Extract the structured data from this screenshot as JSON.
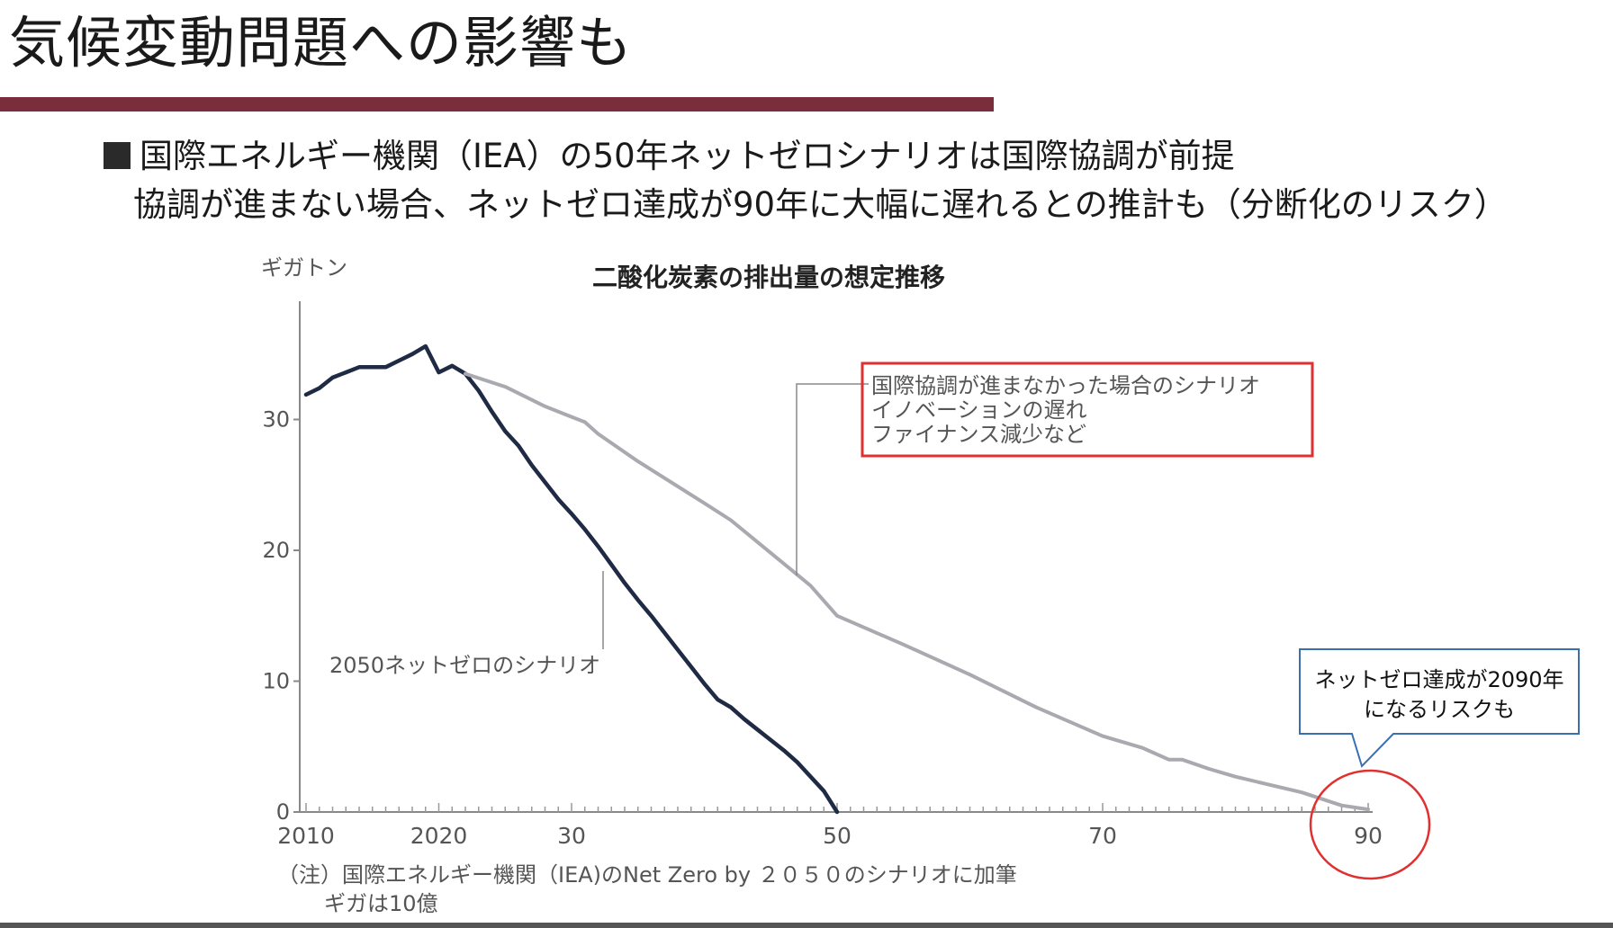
{
  "slide": {
    "title": "気候変動問題への影響も",
    "bullet1": "国際エネルギー機関（IEA）の50年ネットゼロシナリオは国際協調が前提",
    "bullet2": "協調が進まない場合、ネットゼロ達成が90年に大幅に遅れるとの推計も（分断化のリスク）"
  },
  "colors": {
    "title_bar": "#7a2d3a",
    "series_netzero": "#1f2a44",
    "series_delayed": "#a9a9b0",
    "highlight_box": "#e03030",
    "callout_border": "#3a6fb0"
  },
  "chart_data": {
    "type": "line",
    "title": "二酸化炭素の排出量の想定推移",
    "ylabel": "ギガトン",
    "xlabel": "",
    "xlim": [
      2010,
      2090
    ],
    "ylim": [
      0,
      38
    ],
    "x_ticks": [
      2010,
      2020,
      2030,
      2050,
      2070,
      2090
    ],
    "x_tick_labels": [
      "2010",
      "2020",
      "30",
      "50",
      "70",
      "90"
    ],
    "y_ticks": [
      0,
      10,
      20,
      30
    ],
    "y_tick_labels": [
      "0",
      "10",
      "20",
      "30"
    ],
    "grid": false,
    "series": [
      {
        "name": "2050ネットゼロのシナリオ",
        "points": [
          [
            2010,
            31.9
          ],
          [
            2011,
            32.4
          ],
          [
            2012,
            33.2
          ],
          [
            2013,
            33.6
          ],
          [
            2014,
            34.0
          ],
          [
            2015,
            34.0
          ],
          [
            2016,
            34.0
          ],
          [
            2017,
            34.5
          ],
          [
            2018,
            35.0
          ],
          [
            2019,
            35.6
          ],
          [
            2020,
            33.6
          ],
          [
            2021,
            34.1
          ],
          [
            2022,
            33.5
          ],
          [
            2023,
            32.2
          ],
          [
            2024,
            30.6
          ],
          [
            2025,
            29.1
          ],
          [
            2026,
            28.0
          ],
          [
            2027,
            26.5
          ],
          [
            2028,
            25.2
          ],
          [
            2029,
            23.9
          ],
          [
            2030,
            22.8
          ],
          [
            2031,
            21.6
          ],
          [
            2032,
            20.3
          ],
          [
            2033,
            18.9
          ],
          [
            2034,
            17.5
          ],
          [
            2035,
            16.2
          ],
          [
            2036,
            15.0
          ],
          [
            2037,
            13.7
          ],
          [
            2038,
            12.4
          ],
          [
            2039,
            11.1
          ],
          [
            2040,
            9.8
          ],
          [
            2041,
            8.6
          ],
          [
            2042,
            8.0
          ],
          [
            2043,
            7.1
          ],
          [
            2044,
            6.3
          ],
          [
            2045,
            5.5
          ],
          [
            2046,
            4.7
          ],
          [
            2047,
            3.8
          ],
          [
            2048,
            2.7
          ],
          [
            2049,
            1.6
          ],
          [
            2050,
            0.0
          ]
        ]
      },
      {
        "name": "国際協調が進まなかった場合のシナリオ",
        "points": [
          [
            2022,
            33.5
          ],
          [
            2025,
            32.5
          ],
          [
            2028,
            31.0
          ],
          [
            2030,
            30.2
          ],
          [
            2031,
            29.8
          ],
          [
            2032,
            28.9
          ],
          [
            2035,
            26.8
          ],
          [
            2040,
            23.6
          ],
          [
            2042,
            22.3
          ],
          [
            2045,
            19.8
          ],
          [
            2048,
            17.3
          ],
          [
            2050,
            15.0
          ],
          [
            2055,
            12.8
          ],
          [
            2060,
            10.5
          ],
          [
            2065,
            8.0
          ],
          [
            2070,
            5.8
          ],
          [
            2073,
            4.9
          ],
          [
            2075,
            4.0
          ],
          [
            2076,
            4.0
          ],
          [
            2078,
            3.3
          ],
          [
            2080,
            2.7
          ],
          [
            2085,
            1.5
          ],
          [
            2088,
            0.5
          ],
          [
            2090,
            0.2
          ]
        ]
      }
    ],
    "annotations": {
      "netzero_label": "2050ネットゼロのシナリオ",
      "delayed_box_lines": [
        "国際協調が進まなかった場合のシナリオ",
        "イノベーションの遅れ",
        "ファイナンス減少など"
      ],
      "callout_lines": [
        "ネットゼロ達成が2090年",
        "になるリスクも"
      ],
      "note_lines": [
        "（注）国際エネルギー機関（IEA)のNet Zero by ２０５０のシナリオに加筆",
        "ギガは10億"
      ]
    }
  }
}
